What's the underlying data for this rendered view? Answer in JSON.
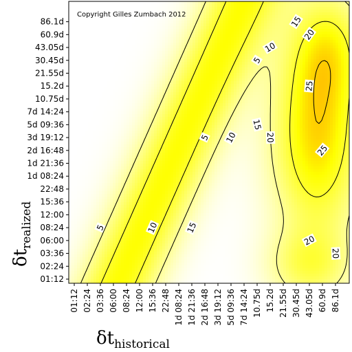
{
  "chart_data": {
    "type": "heatmap",
    "title": "",
    "copyright": "Copyright Gilles Zumbach 2012",
    "xlabel": {
      "symbol": "δt",
      "subscript": "historical"
    },
    "ylabel": {
      "symbol": "δt",
      "subscript": "realized"
    },
    "x_ticks": [
      "01:12",
      "02:24",
      "03:36",
      "06:00",
      "08:24",
      "12:00",
      "15:36",
      "22:48",
      "1d 08:24",
      "1d 21:36",
      "2d 16:48",
      "3d 19:12",
      "5d 09:36",
      "7d 14:24",
      "10.75d",
      "15.2d",
      "21.55d",
      "30.45d",
      "43.05d",
      "60.9d",
      "86.1d"
    ],
    "y_ticks": [
      "01:12",
      "02:24",
      "03:36",
      "06:00",
      "08:24",
      "12:00",
      "15:36",
      "22:48",
      "1d 08:24",
      "1d 21:36",
      "2d 16:48",
      "3d 19:12",
      "5d 09:36",
      "7d 14:24",
      "10.75d",
      "15.2d",
      "21.55d",
      "30.45d",
      "43.05d",
      "60.9d",
      "86.1d"
    ],
    "contour_levels": [
      5,
      10,
      15,
      20,
      25
    ],
    "colorscale": [
      "#ffffff",
      "#ffff00",
      "#ff0000"
    ],
    "contour_labels": [
      {
        "text": "5",
        "x": "03:36",
        "y": "08:24"
      },
      {
        "text": "5",
        "x": "2d 16:48",
        "y": "3d 19:12"
      },
      {
        "text": "5",
        "x": "10.75d",
        "y": "30.45d"
      },
      {
        "text": "10",
        "x": "15:36",
        "y": "08:24"
      },
      {
        "text": "10",
        "x": "5d 09:36",
        "y": "3d 19:12"
      },
      {
        "text": "10",
        "x": "15.2d",
        "y": "43.05d"
      },
      {
        "text": "15",
        "x": "1d 21:36",
        "y": "08:24"
      },
      {
        "text": "15",
        "x": "10.75d",
        "y": "5d 09:36"
      },
      {
        "text": "15",
        "x": "30.45d",
        "y": "86.1d"
      },
      {
        "text": "20",
        "x": "15.2d",
        "y": "3d 19:12"
      },
      {
        "text": "20",
        "x": "43.05d",
        "y": "06:00"
      },
      {
        "text": "20",
        "x": "43.05d",
        "y": "60.9d"
      },
      {
        "text": "20",
        "x": "86.1d",
        "y": "03:36"
      },
      {
        "text": "25",
        "x": "43.05d",
        "y": "15.2d"
      },
      {
        "text": "25",
        "x": "60.9d",
        "y": "2d 16:48"
      }
    ]
  }
}
